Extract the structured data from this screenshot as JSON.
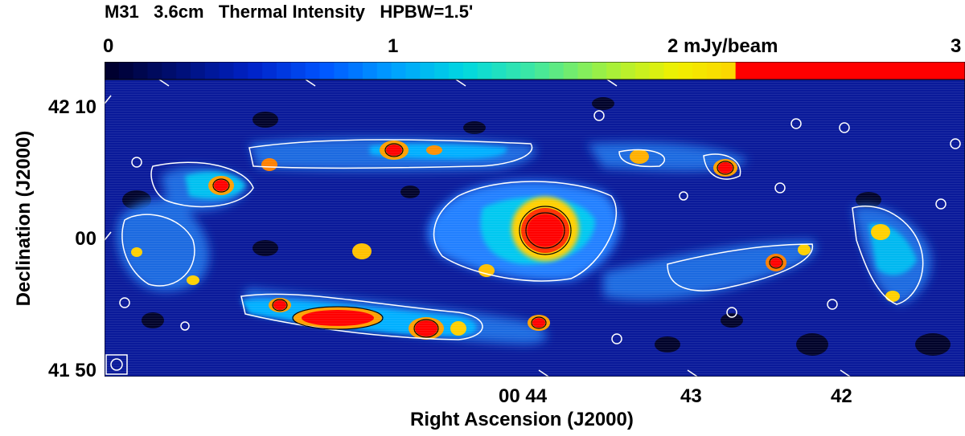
{
  "title": "M31   3.6cm   Thermal Intensity   HPBW=1.5'",
  "colorbar": {
    "labels": [
      "0",
      "1",
      "2 mJy/beam",
      "3"
    ],
    "stops": [
      "#000030",
      "#00107a",
      "#0022c8",
      "#0055ff",
      "#00a0ff",
      "#00d8e0",
      "#40e8a0",
      "#a0f040",
      "#f0f000",
      "#ffd000",
      "#ffa000",
      "#ff6000",
      "#ff0000"
    ]
  },
  "axes": {
    "x_label": "Right Ascension (J2000)",
    "y_label": "Declination (J2000)",
    "x_ticks": [
      "00 44",
      "43",
      "42"
    ],
    "y_ticks": [
      "42 10",
      "00",
      "41 50"
    ]
  }
}
